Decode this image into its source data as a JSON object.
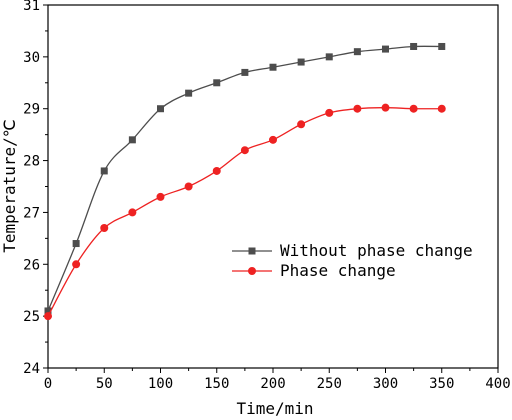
{
  "chart_data": {
    "type": "line",
    "xlabel": "Time/min",
    "ylabel": "Temperature/℃",
    "xlim": [
      0,
      400
    ],
    "ylim": [
      24,
      31
    ],
    "xticks": [
      "0",
      "50",
      "100",
      "150",
      "200",
      "250",
      "300",
      "350",
      "400"
    ],
    "yticks": [
      "24",
      "25",
      "26",
      "27",
      "28",
      "29",
      "30",
      "31"
    ],
    "grid": false,
    "legend_position": "center-right",
    "x": [
      0,
      25,
      50,
      75,
      100,
      125,
      150,
      175,
      200,
      225,
      250,
      275,
      300,
      325,
      350
    ],
    "series": [
      {
        "name": "Without phase change",
        "marker": "square",
        "color": "#4d4d4d",
        "values": [
          25.1,
          26.4,
          27.8,
          28.4,
          29.0,
          29.3,
          29.5,
          29.7,
          29.8,
          29.9,
          30.0,
          30.1,
          30.15,
          30.2,
          30.2
        ]
      },
      {
        "name": "Phase change",
        "marker": "circle",
        "color": "#ee2222",
        "values": [
          25.0,
          26.0,
          26.7,
          27.0,
          27.3,
          27.5,
          27.8,
          28.2,
          28.4,
          28.7,
          28.92,
          29.0,
          29.02,
          29.0,
          29.0
        ]
      }
    ]
  }
}
